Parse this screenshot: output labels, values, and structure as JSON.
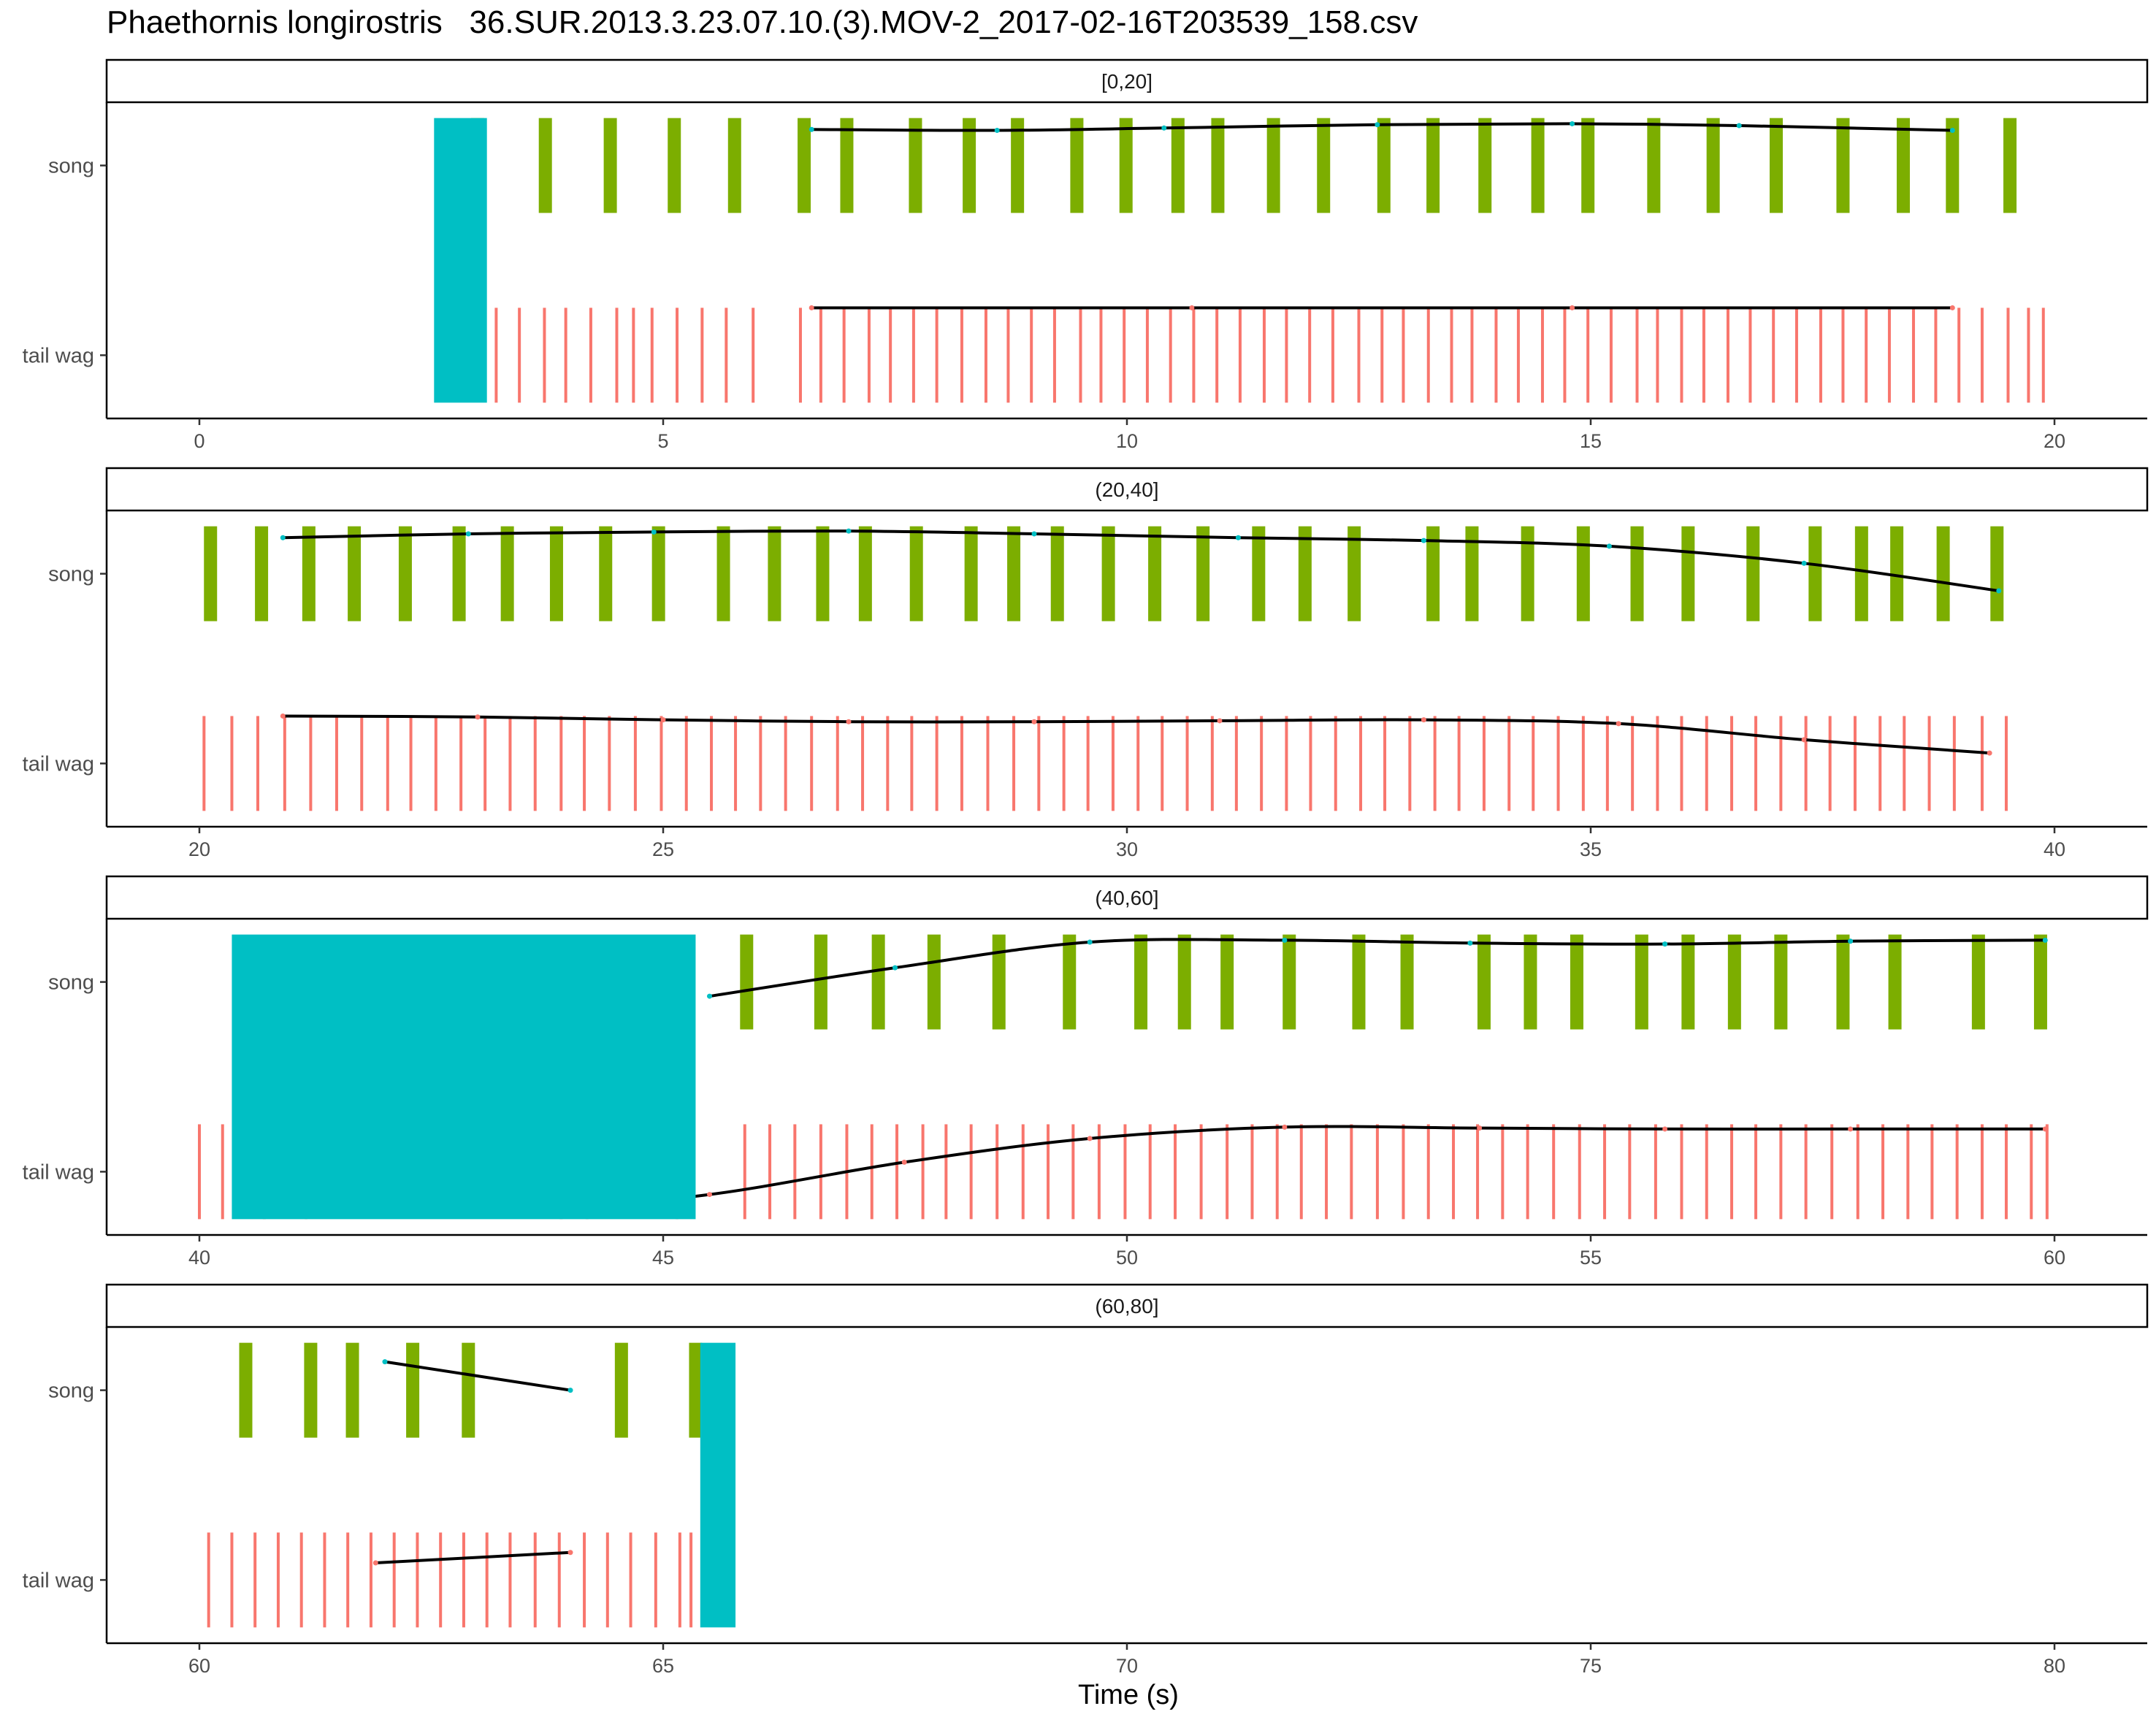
{
  "chart_data": {
    "type": "timeline",
    "title": "Phaethornis longirostris   36.SUR.2013.3.23.07.10.(3).MOV-2_2017-02-16T203539_158.csv",
    "xlabel": "Time (s)",
    "categories": [
      "song",
      "tail wag"
    ],
    "colors": {
      "song": "#7CAE00",
      "tail_wag": "#F8766D",
      "off_screen": "#00BFC4",
      "rate_line": "#000000"
    },
    "panels": [
      {
        "label": "[0,20]",
        "xlim": [
          -1,
          21
        ],
        "ticks": [
          0,
          5,
          10,
          15,
          20
        ],
        "off_screen": [
          [
            2.53,
            3.1
          ]
        ],
        "song": [
          3.0,
          3.73,
          4.43,
          5.12,
          5.77,
          6.52,
          6.98,
          7.72,
          8.3,
          8.82,
          9.46,
          9.99,
          10.55,
          10.98,
          11.58,
          12.12,
          12.77,
          13.3,
          13.86,
          14.43,
          14.97,
          15.68,
          16.32,
          17.0,
          17.72,
          18.37,
          18.9,
          19.52
        ],
        "tail_wag": [
          3.2,
          3.45,
          3.72,
          3.95,
          4.22,
          4.5,
          4.68,
          4.88,
          5.15,
          5.42,
          5.68,
          5.97,
          6.48,
          6.7,
          6.95,
          7.22,
          7.45,
          7.7,
          7.95,
          8.22,
          8.48,
          8.72,
          8.97,
          9.22,
          9.5,
          9.72,
          9.97,
          10.22,
          10.47,
          10.72,
          10.97,
          11.22,
          11.48,
          11.72,
          11.97,
          12.22,
          12.5,
          12.75,
          12.98,
          13.25,
          13.5,
          13.72,
          13.98,
          14.22,
          14.48,
          14.72,
          14.97,
          15.22,
          15.5,
          15.72,
          15.98,
          16.22,
          16.48,
          16.72,
          16.97,
          17.22,
          17.48,
          17.72,
          17.97,
          18.22,
          18.48,
          18.72,
          18.97,
          19.22,
          19.5,
          19.72,
          19.88
        ],
        "song_rate": [
          [
            6.6,
            0.38
          ],
          [
            8.6,
            0.37
          ],
          [
            10.4,
            0.395
          ],
          [
            12.7,
            0.43
          ],
          [
            14.8,
            0.44
          ],
          [
            16.6,
            0.42
          ],
          [
            18.9,
            0.37
          ]
        ],
        "tail_rate": [
          [
            6.6,
            0.5
          ],
          [
            10.7,
            0.5
          ],
          [
            14.8,
            0.5
          ],
          [
            18.9,
            0.5
          ]
        ]
      },
      {
        "label": "(20,40]",
        "xlim": [
          19,
          41
        ],
        "ticks": [
          20,
          25,
          30,
          35,
          40
        ],
        "off_screen": [],
        "song": [
          20.12,
          20.67,
          21.18,
          21.67,
          22.22,
          22.8,
          23.32,
          23.85,
          24.38,
          24.95,
          25.65,
          26.2,
          26.72,
          27.18,
          27.73,
          28.32,
          28.78,
          29.25,
          29.8,
          30.3,
          30.82,
          31.42,
          31.92,
          32.45,
          33.3,
          33.72,
          34.32,
          34.92,
          35.5,
          36.05,
          36.75,
          37.42,
          37.92,
          38.3,
          38.8,
          39.38
        ],
        "tail_wag": [
          20.05,
          20.35,
          20.63,
          20.92,
          21.2,
          21.48,
          21.75,
          22.03,
          22.28,
          22.55,
          22.82,
          23.08,
          23.35,
          23.62,
          23.9,
          24.15,
          24.42,
          24.7,
          24.98,
          25.25,
          25.52,
          25.78,
          26.05,
          26.32,
          26.6,
          26.88,
          27.15,
          27.42,
          27.68,
          27.95,
          28.22,
          28.5,
          28.78,
          29.05,
          29.32,
          29.58,
          29.85,
          30.12,
          30.38,
          30.65,
          30.92,
          31.18,
          31.45,
          31.72,
          31.98,
          32.25,
          32.52,
          32.78,
          33.05,
          33.32,
          33.58,
          33.85,
          34.12,
          34.38,
          34.65,
          34.92,
          35.18,
          35.45,
          35.72,
          35.98,
          36.25,
          36.52,
          36.78,
          37.05,
          37.32,
          37.58,
          37.85,
          38.12,
          38.38,
          38.65,
          38.92,
          39.22,
          39.48
        ],
        "song_rate": [
          [
            20.9,
            0.38
          ],
          [
            22.9,
            0.42
          ],
          [
            24.9,
            0.44
          ],
          [
            27.0,
            0.45
          ],
          [
            29.0,
            0.42
          ],
          [
            31.2,
            0.38
          ],
          [
            33.2,
            0.35
          ],
          [
            35.2,
            0.29
          ],
          [
            37.3,
            0.11
          ],
          [
            39.4,
            -0.18
          ]
        ],
        "tail_rate": [
          [
            20.9,
            0.5
          ],
          [
            23.0,
            0.49
          ],
          [
            25.0,
            0.46
          ],
          [
            27.0,
            0.44
          ],
          [
            29.0,
            0.44
          ],
          [
            31.0,
            0.45
          ],
          [
            33.2,
            0.46
          ],
          [
            35.3,
            0.42
          ],
          [
            37.3,
            0.25
          ],
          [
            39.3,
            0.11
          ]
        ]
      },
      {
        "label": "(40,60]",
        "xlim": [
          39,
          61
        ],
        "ticks": [
          40,
          45,
          50,
          55,
          60
        ],
        "off_screen": [
          [
            40.35,
            45.35
          ]
        ],
        "song": [
          45.9,
          46.7,
          47.32,
          47.92,
          48.62,
          49.38,
          50.15,
          50.62,
          51.08,
          51.75,
          52.5,
          53.02,
          53.85,
          54.35,
          54.85,
          55.55,
          56.05,
          56.55,
          57.05,
          57.72,
          58.28,
          59.18,
          59.85
        ],
        "tail_wag": [
          40.0,
          40.25,
          40.7,
          41.15,
          43.9,
          44.18,
          45.15,
          45.88,
          46.15,
          46.42,
          46.7,
          46.98,
          47.25,
          47.52,
          47.8,
          48.05,
          48.32,
          48.6,
          48.88,
          49.15,
          49.42,
          49.7,
          49.98,
          50.25,
          50.52,
          50.8,
          51.08,
          51.35,
          51.62,
          51.88,
          52.15,
          52.42,
          52.7,
          52.98,
          53.25,
          53.52,
          53.78,
          54.05,
          54.32,
          54.6,
          54.88,
          55.15,
          55.42,
          55.7,
          55.98,
          56.25,
          56.52,
          56.78,
          57.05,
          57.32,
          57.6,
          57.88,
          58.15,
          58.42,
          58.68,
          58.95,
          59.22,
          59.48,
          59.75,
          59.92
        ],
        "song_rate": [
          [
            45.5,
            -0.15
          ],
          [
            47.5,
            0.15
          ],
          [
            49.6,
            0.42
          ],
          [
            51.7,
            0.44
          ],
          [
            53.7,
            0.41
          ],
          [
            55.8,
            0.4
          ],
          [
            57.8,
            0.43
          ],
          [
            59.9,
            0.44
          ]
        ],
        "tail_rate": [
          [
            41.4,
            -0.4
          ],
          [
            43.6,
            -0.4
          ],
          [
            45.5,
            -0.24
          ],
          [
            47.6,
            0.1
          ],
          [
            49.6,
            0.35
          ],
          [
            51.7,
            0.47
          ],
          [
            53.8,
            0.46
          ],
          [
            55.8,
            0.45
          ],
          [
            57.8,
            0.45
          ],
          [
            59.9,
            0.45
          ]
        ]
      },
      {
        "label": "(60,80]",
        "xlim": [
          59,
          81
        ],
        "ticks": [
          60,
          65,
          70,
          75,
          80
        ],
        "off_screen": [
          [
            65.4,
            65.78
          ]
        ],
        "song": [
          60.5,
          61.2,
          61.65,
          62.3,
          62.9,
          64.55,
          65.35
        ],
        "tail_wag": [
          60.1,
          60.35,
          60.6,
          60.85,
          61.1,
          61.35,
          61.6,
          61.85,
          62.1,
          62.35,
          62.6,
          62.85,
          63.1,
          63.35,
          63.62,
          63.88,
          64.15,
          64.4,
          64.65,
          64.92,
          65.18,
          65.3
        ],
        "song_rate": [
          [
            62.0,
            0.3
          ],
          [
            64.0,
            0.0
          ]
        ],
        "tail_rate": [
          [
            61.9,
            0.18
          ],
          [
            64.0,
            0.29
          ]
        ]
      }
    ]
  }
}
